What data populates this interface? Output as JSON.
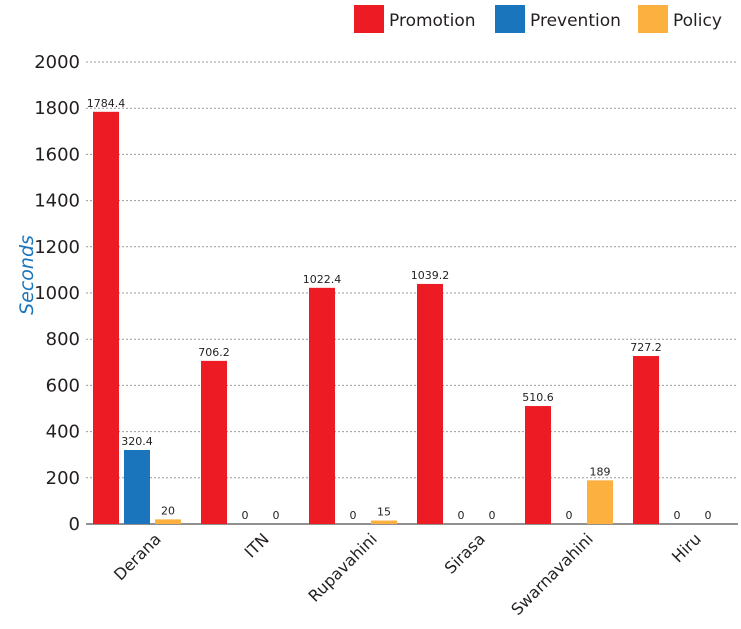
{
  "chart_data": {
    "type": "bar",
    "title": "",
    "xlabel": "",
    "ylabel": "Seconds",
    "ylim": [
      0,
      2000
    ],
    "yticks": [
      0,
      200,
      400,
      600,
      800,
      1000,
      1200,
      1400,
      1600,
      1800,
      2000
    ],
    "grid": true,
    "legend_position": "top-right",
    "categories": [
      "Derana",
      "ITN",
      "Rupavahini",
      "Sirasa",
      "Swarnavahini",
      "Hiru"
    ],
    "series": [
      {
        "name": "Promotion",
        "color": "#ed1c24",
        "values": [
          1784.4,
          706.2,
          1022.4,
          1039.2,
          510.6,
          727.2
        ]
      },
      {
        "name": "Prevention",
        "color": "#1b75bc",
        "values": [
          320.4,
          0,
          0,
          0,
          0,
          0
        ]
      },
      {
        "name": "Policy",
        "color": "#fbb040",
        "values": [
          20,
          0,
          15,
          0,
          189,
          0
        ]
      }
    ],
    "ylabel_color": "#1b75bc"
  }
}
